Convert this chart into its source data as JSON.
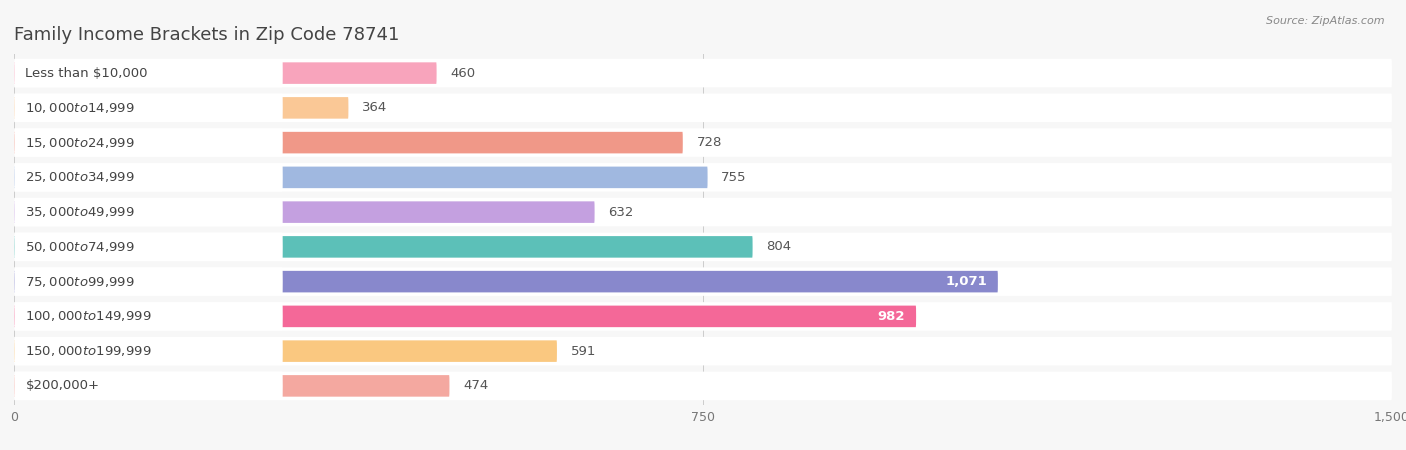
{
  "title": "Family Income Brackets in Zip Code 78741",
  "source": "Source: ZipAtlas.com",
  "categories": [
    "Less than $10,000",
    "$10,000 to $14,999",
    "$15,000 to $24,999",
    "$25,000 to $34,999",
    "$35,000 to $49,999",
    "$50,000 to $74,999",
    "$75,000 to $99,999",
    "$100,000 to $149,999",
    "$150,000 to $199,999",
    "$200,000+"
  ],
  "values": [
    460,
    364,
    728,
    755,
    632,
    804,
    1071,
    982,
    591,
    474
  ],
  "bar_colors": [
    "#F8A4BC",
    "#FAC896",
    "#F09888",
    "#A0B8E0",
    "#C4A0E0",
    "#5CC0B8",
    "#8888CC",
    "#F46898",
    "#FAC880",
    "#F4A8A0"
  ],
  "xlim": [
    0,
    1500
  ],
  "xticks": [
    0,
    750,
    1500
  ],
  "background_color": "#f7f7f7",
  "bar_bg_color": "#e8e8e8",
  "row_bg_color": "#ffffff",
  "title_fontsize": 13,
  "label_fontsize": 9.5,
  "value_fontsize": 9.5
}
